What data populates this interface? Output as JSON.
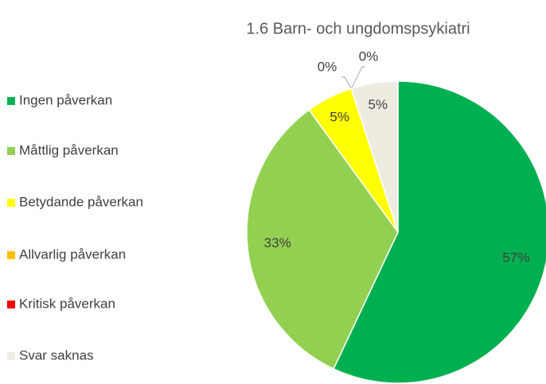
{
  "chart_data": {
    "type": "pie",
    "title": "1.6 Barn- och ungdomspsykiatri",
    "categories": [
      "Ingen påverkan",
      "Måttlig påverkan",
      "Betydande påverkan",
      "Allvarlig påverkan",
      "Kritisk påverkan",
      "Svar saknas"
    ],
    "values": [
      57,
      33,
      5,
      0,
      0,
      5
    ],
    "value_labels": [
      "57%",
      "33%",
      "5%",
      "0%",
      "0%",
      "5%"
    ],
    "colors": [
      "#00b050",
      "#92d050",
      "#ffff00",
      "#ffc000",
      "#ff0000",
      "#eeece1"
    ],
    "legend": "left"
  }
}
